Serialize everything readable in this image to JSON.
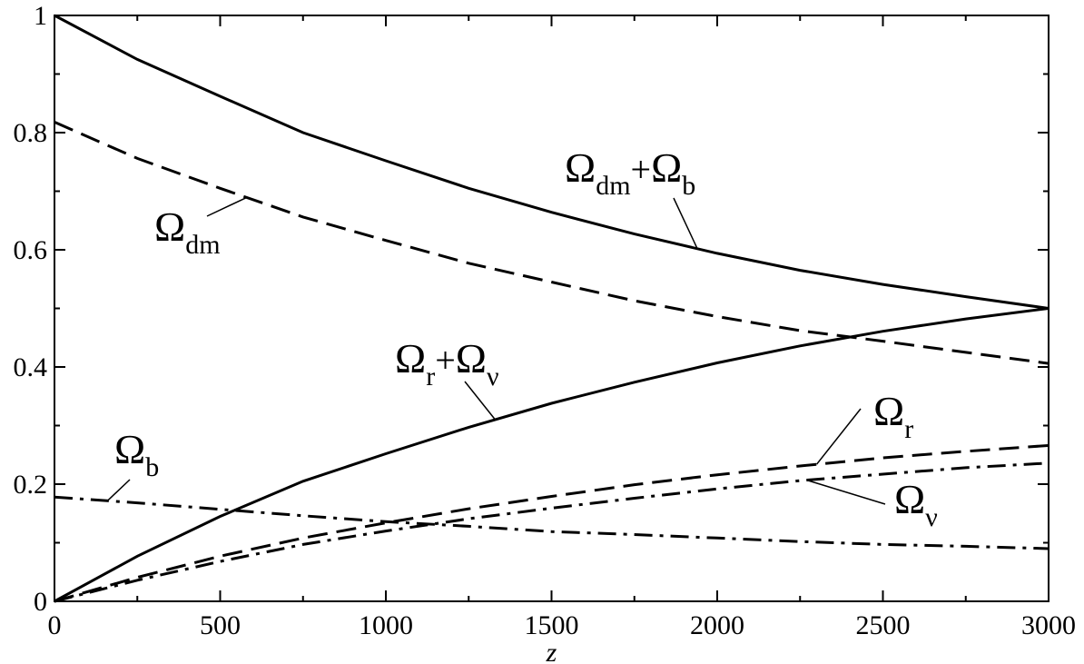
{
  "chart_data": {
    "type": "line",
    "xlabel": "z",
    "ylabel": "",
    "xlim": [
      0,
      3000
    ],
    "ylim": [
      0,
      1
    ],
    "x_ticks": [
      0,
      500,
      1000,
      1500,
      2000,
      2500,
      3000
    ],
    "y_ticks": [
      0,
      0.2,
      0.4,
      0.6,
      0.8,
      1
    ],
    "x_tick_labels": [
      "0",
      "500",
      "1000",
      "1500",
      "2000",
      "2500",
      "3000"
    ],
    "y_tick_labels": [
      "0",
      "0.2",
      "0.4",
      "0.6",
      "0.8",
      "1"
    ],
    "grid": false,
    "legend": "none",
    "series": [
      {
        "key": "dm_b",
        "style": "solid",
        "x": [
          0,
          250,
          500,
          750,
          1000,
          1250,
          1500,
          1750,
          2000,
          2250,
          2500,
          2750,
          3000
        ],
        "values": [
          1.0,
          0.925,
          0.862,
          0.8,
          0.752,
          0.705,
          0.664,
          0.627,
          0.594,
          0.565,
          0.541,
          0.52,
          0.5
        ]
      },
      {
        "key": "dm",
        "style": "dashed",
        "x": [
          0,
          250,
          500,
          750,
          1000,
          1250,
          1500,
          1750,
          2000,
          2250,
          2500,
          2750,
          3000
        ],
        "values": [
          0.818,
          0.756,
          0.705,
          0.656,
          0.616,
          0.577,
          0.545,
          0.513,
          0.486,
          0.462,
          0.444,
          0.425,
          0.406
        ]
      },
      {
        "key": "r_nu",
        "style": "solid",
        "x": [
          0,
          250,
          500,
          750,
          1000,
          1250,
          1500,
          1750,
          2000,
          2250,
          2500,
          2750,
          3000
        ],
        "values": [
          0.0,
          0.077,
          0.145,
          0.205,
          0.252,
          0.297,
          0.338,
          0.374,
          0.407,
          0.436,
          0.461,
          0.482,
          0.5
        ]
      },
      {
        "key": "r",
        "style": "dashed",
        "x": [
          0,
          250,
          500,
          750,
          1000,
          1250,
          1500,
          1750,
          2000,
          2250,
          2500,
          2750,
          3000
        ],
        "values": [
          0.0,
          0.041,
          0.077,
          0.108,
          0.134,
          0.158,
          0.179,
          0.199,
          0.216,
          0.231,
          0.245,
          0.256,
          0.266
        ]
      },
      {
        "key": "nu",
        "style": "dashdot",
        "x": [
          0,
          250,
          500,
          750,
          1000,
          1250,
          1500,
          1750,
          2000,
          2250,
          2500,
          2750,
          3000
        ],
        "values": [
          0.0,
          0.036,
          0.068,
          0.097,
          0.12,
          0.141,
          0.159,
          0.176,
          0.192,
          0.206,
          0.217,
          0.228,
          0.236
        ]
      },
      {
        "key": "b",
        "style": "dashdot",
        "x": [
          0,
          250,
          500,
          750,
          1000,
          1250,
          1500,
          1750,
          2000,
          2250,
          2500,
          2750,
          3000
        ],
        "values": [
          0.178,
          0.168,
          0.157,
          0.146,
          0.136,
          0.128,
          0.119,
          0.114,
          0.108,
          0.102,
          0.097,
          0.094,
          0.09
        ]
      }
    ],
    "annotations": [
      {
        "key": "dm_b",
        "symbol": "Ω",
        "sub": "dm",
        "plus": "+",
        "symbol2": "Ω",
        "sub2": "b",
        "series": "dm_b",
        "at_x": 1940
      },
      {
        "key": "dm",
        "symbol": "Ω",
        "sub": "dm",
        "series": "dm",
        "at_x": 580
      },
      {
        "key": "r_nu",
        "symbol": "Ω",
        "sub": "r",
        "plus": "+",
        "symbol2": "Ω",
        "sub2": "ν",
        "series": "r_nu",
        "at_x": 1330
      },
      {
        "key": "r",
        "symbol": "Ω",
        "sub": "r",
        "series": "r",
        "at_x": 2300
      },
      {
        "key": "nu",
        "symbol": "Ω",
        "sub": "ν",
        "series": "nu",
        "at_x": 2270
      },
      {
        "key": "b",
        "symbol": "Ω",
        "sub": "b",
        "series": "b",
        "at_x": 160
      }
    ]
  }
}
